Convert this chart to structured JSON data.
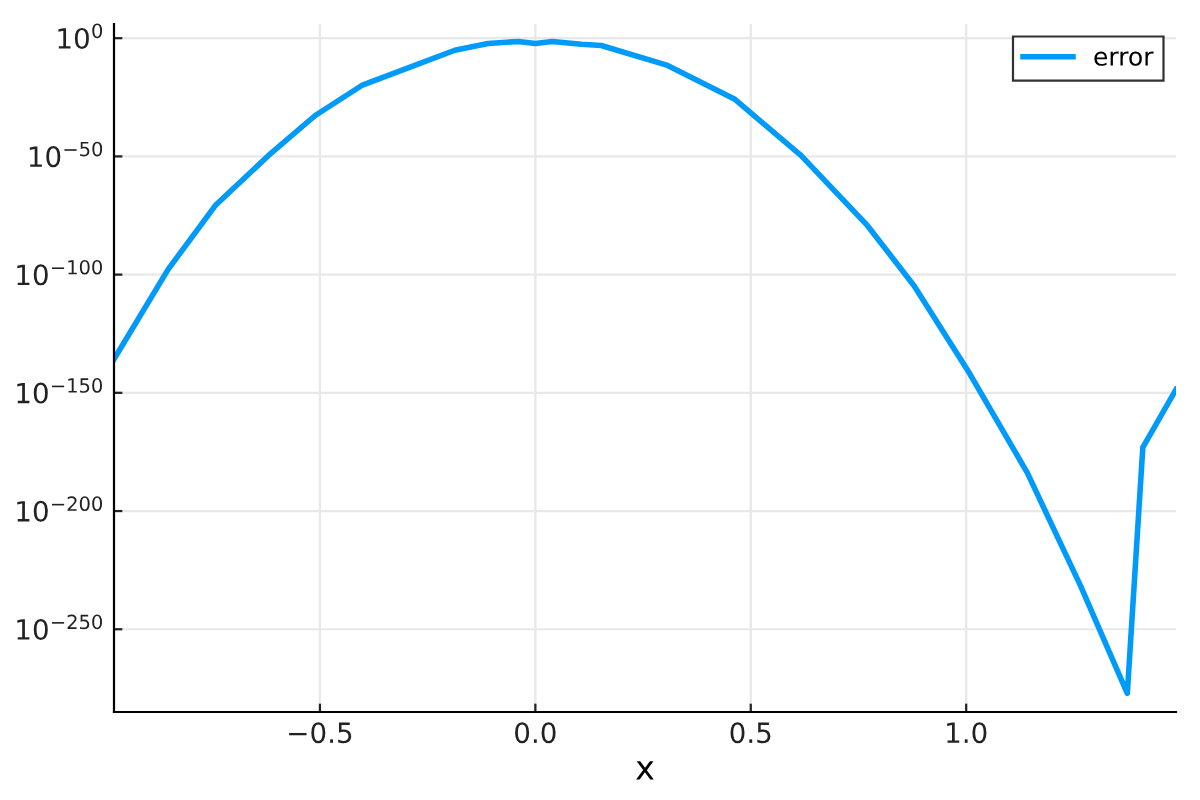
{
  "chart_data": {
    "type": "line",
    "xlabel": "x",
    "log": "y",
    "grid": true,
    "legend": "top right",
    "line_style": "solid",
    "marker": "none",
    "xlim": [
      -0.978,
      1.487
    ],
    "ylim": [
      1e-285,
      1000000.0
    ],
    "xticks": [
      {
        "value": -0.5,
        "label": "−0.5"
      },
      {
        "value": 0,
        "label": "0.0"
      },
      {
        "value": 0.5,
        "label": "0.5"
      },
      {
        "value": 1.0,
        "label": "1.0"
      }
    ],
    "yticks": [
      {
        "value": 1,
        "label": "10$^{0}$"
      },
      {
        "value": 1e-50,
        "label": "10$^{−50}$"
      },
      {
        "value": 1e-100,
        "label": "10$^{−100}$"
      },
      {
        "value": 1e-150,
        "label": "10$^{−150}$"
      },
      {
        "value": 1e-200,
        "label": "10$^{−200}$"
      },
      {
        "value": 1e-250,
        "label": "10$^{−250}$"
      }
    ],
    "series": [
      {
        "name": "error",
        "color": "#009af9",
        "x": [
          -0.978,
          -0.852,
          -0.743,
          -0.62,
          -0.511,
          -0.403,
          -0.28,
          -0.187,
          -0.11,
          -0.04,
          0.0,
          0.039,
          0.107,
          0.153,
          0.307,
          0.462,
          0.617,
          0.771,
          0.879,
          1.007,
          1.142,
          1.266,
          1.374,
          1.41,
          1.487
        ],
        "values": [
          1.6e-136,
          2e-98,
          1.6e-71,
          2e-50,
          2e-33,
          1e-20,
          3e-12,
          8e-06,
          0.006,
          0.04,
          0.006,
          0.04,
          0.003,
          0.0008,
          3e-12,
          2e-26,
          2e-50,
          5e-80,
          2e-105,
          3e-142,
          1.3e-184,
          1.3e-232,
          8e-278,
          8e-174,
          2.5e-149
        ]
      }
    ]
  }
}
